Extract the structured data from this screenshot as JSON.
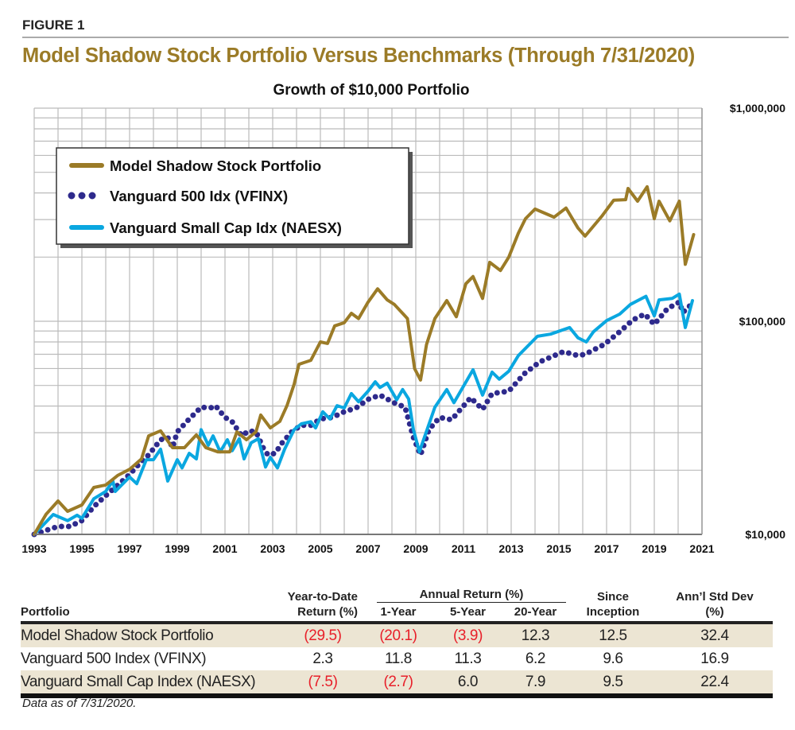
{
  "figure_label": "FIGURE 1",
  "figure_title": "Model Shadow Stock Portfolio Versus Benchmarks (Through 7/31/2020)",
  "colors": {
    "shadow": "#9b7b27",
    "vfinx": "#2e2a8c",
    "naesx": "#0aa7e0",
    "negative": "#e8202a",
    "row_shade": "#ece5d3"
  },
  "chart_data": {
    "type": "line",
    "title": "Growth of $10,000 Portfolio",
    "xlabel": "",
    "ylabel": "",
    "xlim": [
      1993,
      2021
    ],
    "ylim": [
      10000,
      1000000
    ],
    "y_scale": "log",
    "grid": true,
    "legend_position": "top-left",
    "x_ticks": [
      "1993",
      "1995",
      "1997",
      "1999",
      "2001",
      "2003",
      "2005",
      "2007",
      "2009",
      "2011",
      "2013",
      "2015",
      "2017",
      "2019",
      "2021"
    ],
    "y_ticks": [
      {
        "value": 1000000,
        "label": "$1,000,000"
      },
      {
        "value": 100000,
        "label": "$100,000"
      },
      {
        "value": 10000,
        "label": "$10,000"
      }
    ],
    "series": [
      {
        "name": "Model Shadow Stock Portfolio",
        "style": "solid",
        "x": [
          1993,
          1993.5,
          1994,
          1994.4,
          1995,
          1995.5,
          1996,
          1996.5,
          1997,
          1997.5,
          1997.8,
          1998.3,
          1998.8,
          1999.3,
          1999.8,
          2000.2,
          2000.7,
          2001.2,
          2001.5,
          2001.9,
          2002.3,
          2002.5,
          2002.9,
          2003.3,
          2003.6,
          2003.9,
          2004.1,
          2004.6,
          2005,
          2005.3,
          2005.6,
          2006,
          2006.3,
          2006.6,
          2007,
          2007.4,
          2007.8,
          2008.1,
          2008.65,
          2008.95,
          2009.2,
          2009.45,
          2009.8,
          2010.3,
          2010.7,
          2011.1,
          2011.4,
          2011.8,
          2012.1,
          2012.55,
          2012.9,
          2013.3,
          2013.6,
          2014,
          2014.8,
          2015.3,
          2015.8,
          2016.1,
          2016.8,
          2017.3,
          2017.8,
          2017.9,
          2018.3,
          2018.7,
          2019,
          2019.2,
          2019.65,
          2020.05,
          2020.3,
          2020.65
        ],
        "values": [
          10000,
          12430,
          14350,
          12830,
          13740,
          16600,
          17050,
          18900,
          20200,
          22600,
          29000,
          30600,
          25500,
          25500,
          29300,
          25500,
          24400,
          24400,
          30300,
          27800,
          30300,
          36300,
          31600,
          33900,
          40200,
          50700,
          62800,
          65600,
          80000,
          78700,
          95100,
          98500,
          109000,
          103000,
          123000,
          142000,
          126000,
          120000,
          103000,
          60000,
          53000,
          77800,
          103000,
          125000,
          105000,
          150000,
          162000,
          128000,
          189000,
          173000,
          200000,
          259000,
          303000,
          336000,
          308000,
          340000,
          274000,
          251000,
          311000,
          370000,
          372000,
          420000,
          366000,
          428000,
          303000,
          366000,
          296000,
          366000,
          185000,
          255000
        ]
      },
      {
        "name": "Vanguard 500 Idx (VFINX)",
        "style": "dotted",
        "x": [
          1993,
          1994,
          1994.5,
          1995,
          1995.5,
          1996,
          1996.5,
          1997,
          1997.5,
          1997.8,
          1998.3,
          1998.6,
          1998.8,
          1999,
          1999.5,
          2000,
          2000.4,
          2000.6,
          2001,
          2001.3,
          2001.7,
          2002,
          2002.3,
          2002.6,
          2002.8,
          2003.1,
          2003.4,
          2003.8,
          2004.2,
          2004.6,
          2005,
          2005.5,
          2006,
          2006.5,
          2007,
          2007.5,
          2008.1,
          2008.55,
          2008.9,
          2009.2,
          2009.55,
          2010,
          2010.5,
          2011.3,
          2011.8,
          2012.2,
          2012.9,
          2013.55,
          2014.2,
          2015.2,
          2015.8,
          2016.1,
          2016.9,
          2017.55,
          2018.1,
          2018.6,
          2019,
          2019.55,
          2020.05,
          2020.2,
          2020.55
        ],
        "values": [
          10000,
          10900,
          10900,
          11600,
          13500,
          15200,
          17000,
          19100,
          22000,
          23600,
          27800,
          28500,
          25500,
          30300,
          34800,
          39500,
          39200,
          40200,
          35400,
          33800,
          29000,
          30600,
          30300,
          25500,
          23600,
          24000,
          26900,
          30300,
          32500,
          32500,
          34800,
          35400,
          37600,
          39200,
          43000,
          45000,
          41400,
          39500,
          28500,
          23600,
          31000,
          35400,
          34500,
          43800,
          38600,
          45800,
          47000,
          56700,
          64500,
          72000,
          69000,
          70000,
          77800,
          89300,
          101500,
          108000,
          96700,
          114500,
          123000,
          110000,
          120000
        ]
      },
      {
        "name": "Vanguard Small Cap Idx (NAESX)",
        "style": "solid",
        "x": [
          1993,
          1993.8,
          1994.4,
          1994.8,
          1995,
          1995.5,
          1996,
          1996.3,
          1996.4,
          1997,
          1997.3,
          1997.7,
          1998,
          1998.3,
          1998.6,
          1999,
          1999.2,
          1999.5,
          1999.8,
          2000,
          2000.3,
          2000.5,
          2000.8,
          2001.1,
          2001.3,
          2001.6,
          2001.8,
          2002.1,
          2002.4,
          2002.7,
          2002.9,
          2003.2,
          2003.5,
          2003.9,
          2004.2,
          2004.6,
          2004.8,
          2005.1,
          2005.4,
          2005.7,
          2006,
          2006.3,
          2006.6,
          2007,
          2007.3,
          2007.5,
          2007.8,
          2008.2,
          2008.45,
          2008.7,
          2008.9,
          2009.15,
          2009.8,
          2010.3,
          2010.6,
          2011.4,
          2011.8,
          2012.2,
          2012.5,
          2012.9,
          2013.3,
          2014.1,
          2014.65,
          2015.45,
          2015.8,
          2016.15,
          2016.45,
          2017,
          2017.55,
          2018,
          2018.65,
          2019,
          2019.2,
          2019.75,
          2020.05,
          2020.3,
          2020.6
        ],
        "values": [
          10000,
          12400,
          11600,
          12300,
          11900,
          14700,
          15900,
          17800,
          15900,
          18600,
          17300,
          22400,
          22400,
          25100,
          17800,
          22400,
          20500,
          24000,
          22600,
          31000,
          26200,
          29000,
          24400,
          27800,
          24700,
          28100,
          22600,
          26900,
          28100,
          20700,
          23000,
          20500,
          25100,
          31000,
          33000,
          33800,
          31600,
          37600,
          34800,
          40200,
          39200,
          45800,
          41900,
          47000,
          52000,
          48900,
          51200,
          42800,
          47800,
          43200,
          31000,
          24400,
          39500,
          47800,
          41500,
          59200,
          45000,
          57700,
          53500,
          58300,
          69000,
          85000,
          87000,
          93400,
          83600,
          80000,
          89300,
          100700,
          108000,
          120000,
          131000,
          106000,
          126000,
          128000,
          134000,
          93400,
          125000
        ]
      }
    ]
  },
  "table": {
    "headers": {
      "portfolio": "Portfolio",
      "ytd_line1": "Year-to-Date",
      "ytd_line2": "Return (%)",
      "annual_group": "Annual Return (%)",
      "y1": "1-Year",
      "y5": "5-Year",
      "y20": "20-Year",
      "since_line1": "Since",
      "since_line2": "Inception",
      "std_line1": "Ann’l Std Dev",
      "std_line2": "(%)"
    },
    "rows": [
      {
        "name": "Model Shadow Stock Portfolio",
        "ytd": "(29.5)",
        "y1": "(20.1)",
        "y5": "(3.9)",
        "y20": "12.3",
        "since": "12.5",
        "std": "32.4"
      },
      {
        "name": "Vanguard 500 Index (VFINX)",
        "ytd": "2.3",
        "y1": "11.8",
        "y5": "11.3",
        "y20": "6.2",
        "since": "9.6",
        "std": "16.9"
      },
      {
        "name": "Vanguard Small Cap Index (NAESX)",
        "ytd": "(7.5)",
        "y1": "(2.7)",
        "y5": "6.0",
        "y20": "7.9",
        "since": "9.5",
        "std": "22.4"
      }
    ]
  },
  "note": "Data as of 7/31/2020."
}
